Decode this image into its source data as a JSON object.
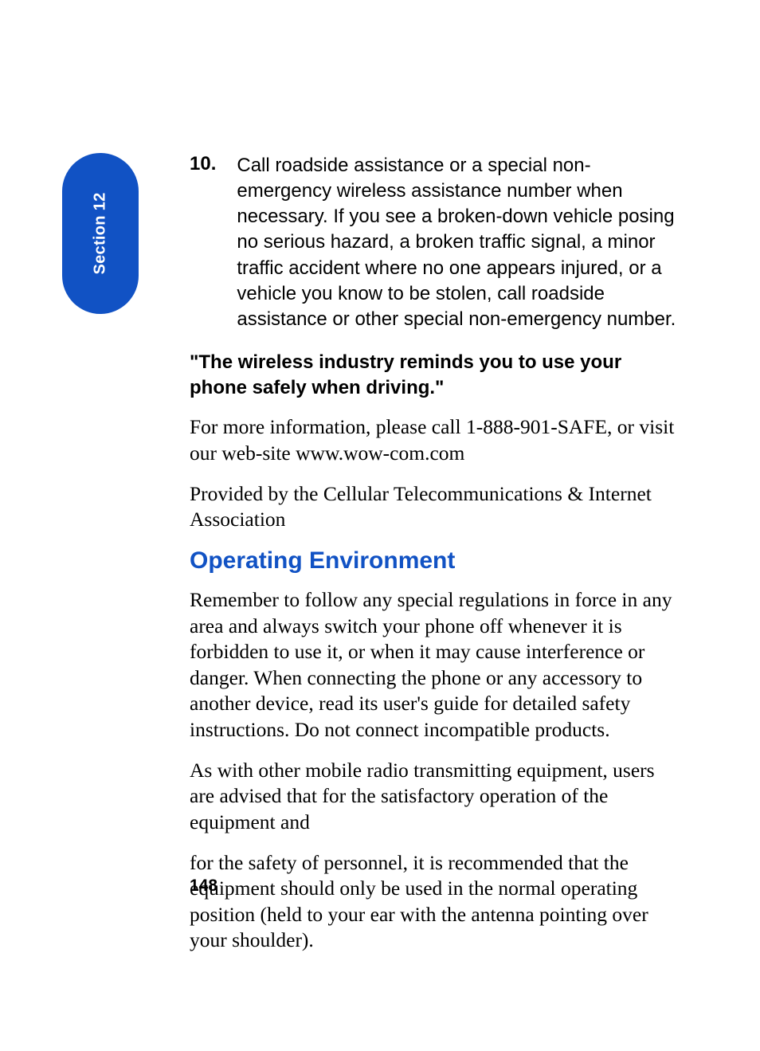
{
  "colors": {
    "tab_bg": "#1152c4",
    "tab_text": "#ffffff",
    "heading_blue": "#1152c4",
    "body_text": "#000000",
    "page_bg": "#ffffff"
  },
  "typography": {
    "sans": "Arial, Helvetica, sans-serif",
    "serif": "'Book Antiqua', Palatino, Georgia, serif",
    "list_fontsize": 24,
    "quote_fontsize": 24,
    "serif_fontsize": 25.5,
    "heading_fontsize": 30,
    "tab_fontsize": 20,
    "page_num_fontsize": 21
  },
  "section_tab": {
    "label": "Section 12"
  },
  "list_item": {
    "number": "10.",
    "text": "Call roadside assistance or a special non-emergency wireless assistance number when necessary.  If you see a broken-down vehicle posing no serious hazard, a broken traffic signal, a minor traffic accident where no one appears injured, or a vehicle you know to be stolen, call roadside assistance or other special non-emergency number."
  },
  "quote": "\"The wireless industry reminds you to use your phone safely when driving.\"",
  "info_para": "For more information, please call 1-888-901-SAFE, or visit our web-site www.wow-com.com",
  "provider_para": "Provided by the Cellular Telecommunications & Internet Association",
  "heading": "Operating Environment",
  "env_para1": "Remember to follow any special regulations in force in any area and always switch your phone off whenever it is forbidden to use it, or when it may cause interference or danger. When connecting the phone or any accessory to another device, read its user's guide for detailed safety instructions. Do not connect incompatible products.",
  "env_para2": "As with other mobile radio transmitting equipment, users are advised that for the satisfactory operation of the equipment and",
  "env_para3": "for the safety of personnel, it is recommended that the equipment should only be used in the normal operating position (held to your ear with the antenna pointing over your shoulder).",
  "page_number": "148"
}
